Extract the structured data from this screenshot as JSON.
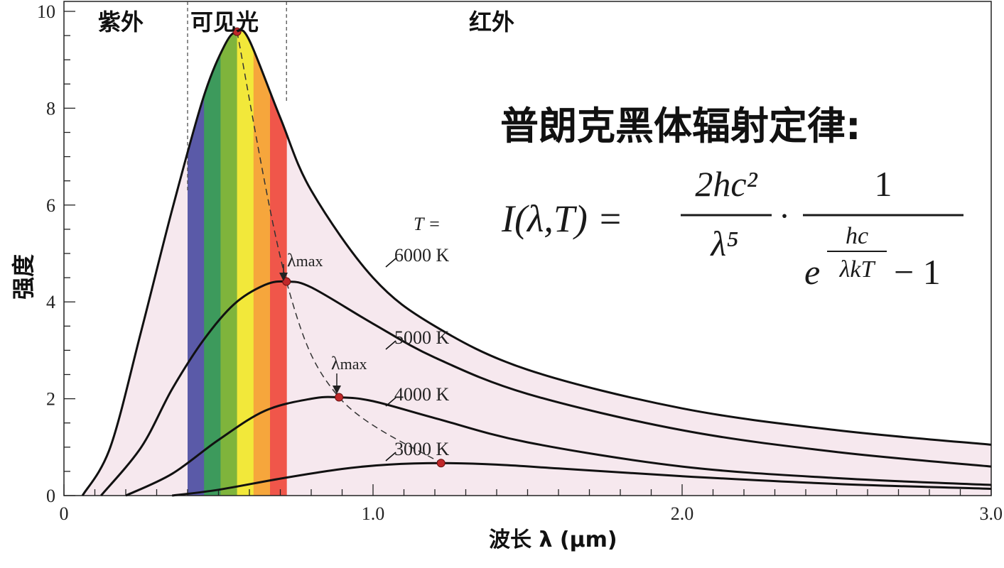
{
  "chart_data": {
    "type": "line",
    "title": "普朗克黑体辐射定律:",
    "xlabel": "波长 λ (μm)",
    "ylabel": "强度",
    "xlim": [
      0,
      3.0
    ],
    "ylim": [
      0,
      10
    ],
    "x_ticks": [
      "0",
      "1.0",
      "2.0",
      "3.0"
    ],
    "y_ticks": [
      "0",
      "2",
      "4",
      "6",
      "8",
      "10"
    ],
    "region_labels": {
      "uv": "紫外",
      "visible": "可见光",
      "ir": "红外"
    },
    "visible_range": [
      0.4,
      0.72
    ],
    "spectrum_colors": [
      "#5a5aa8",
      "#3d9a5c",
      "#7fb43c",
      "#f2e83a",
      "#f6a63c",
      "#f0564a"
    ],
    "curve_fill": "#f6e8ee",
    "temperature_label": "T =",
    "series": [
      {
        "name": "6000 K",
        "x": [
          0.06,
          0.15,
          0.25,
          0.35,
          0.45,
          0.52,
          0.56,
          0.6,
          0.7,
          0.8,
          1.0,
          1.2,
          1.5,
          2.0,
          2.5,
          3.0
        ],
        "values": [
          0.0,
          1.0,
          3.4,
          5.9,
          8.2,
          9.3,
          9.58,
          9.4,
          7.8,
          6.3,
          4.5,
          3.5,
          2.6,
          1.8,
          1.35,
          1.05
        ]
      },
      {
        "name": "5000 K",
        "x": [
          0.12,
          0.25,
          0.35,
          0.45,
          0.55,
          0.65,
          0.72,
          0.8,
          1.0,
          1.2,
          1.5,
          2.0,
          2.5,
          3.0
        ],
        "values": [
          0.0,
          1.0,
          2.2,
          3.2,
          3.95,
          4.35,
          4.42,
          4.3,
          3.55,
          2.85,
          2.1,
          1.35,
          0.9,
          0.6
        ]
      },
      {
        "name": "4000 K",
        "x": [
          0.2,
          0.35,
          0.5,
          0.65,
          0.8,
          0.89,
          1.0,
          1.2,
          1.5,
          2.0,
          2.5,
          3.0
        ],
        "values": [
          0.0,
          0.45,
          1.15,
          1.75,
          2.0,
          2.03,
          1.95,
          1.6,
          1.1,
          0.6,
          0.36,
          0.22
        ]
      },
      {
        "name": "3000 K",
        "x": [
          0.35,
          0.5,
          0.7,
          0.9,
          1.05,
          1.22,
          1.4,
          1.6,
          2.0,
          2.5,
          3.0
        ],
        "values": [
          0.0,
          0.12,
          0.35,
          0.55,
          0.64,
          0.67,
          0.64,
          0.56,
          0.4,
          0.24,
          0.14
        ]
      }
    ],
    "peaks": [
      {
        "x": 0.56,
        "y": 9.58
      },
      {
        "x": 0.72,
        "y": 4.42
      },
      {
        "x": 0.89,
        "y": 2.03
      },
      {
        "x": 1.22,
        "y": 0.67
      }
    ],
    "annotations": {
      "lambda_max": "λmax",
      "lambda_symbol": "λ",
      "lambda_sub": "max"
    }
  },
  "formula": {
    "lhs": "I(λ,T) =",
    "num1": "2hc²",
    "den1": "λ⁵",
    "dot": "·",
    "num2": "1",
    "den2_base": "e",
    "den2_exp_num": "hc",
    "den2_exp_den": "λkT",
    "den2_tail": "− 1"
  }
}
